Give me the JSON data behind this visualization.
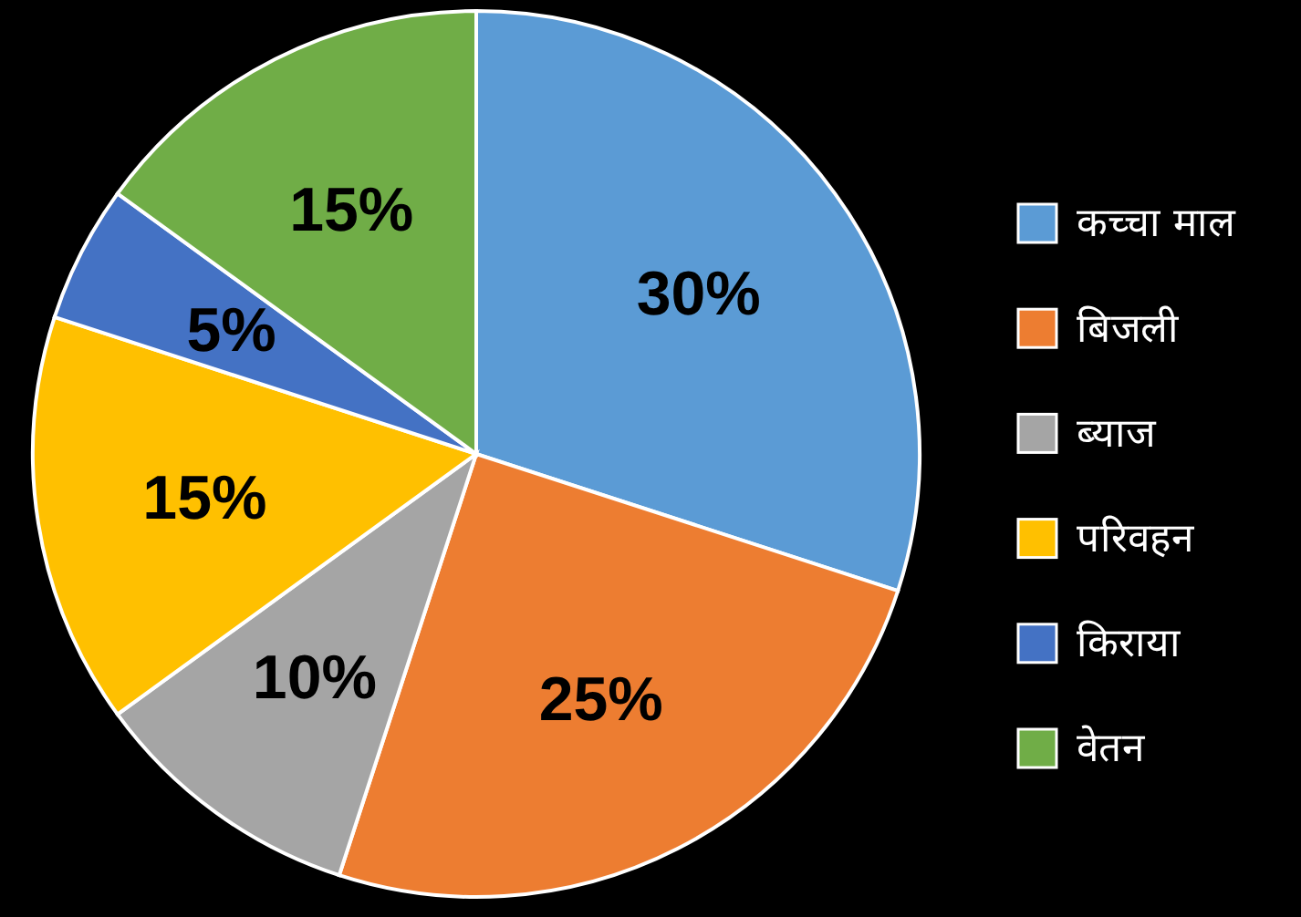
{
  "chart_data": {
    "type": "pie",
    "categories": [
      "कच्चा माल",
      "बिजली",
      "ब्याज",
      "परिवहन",
      "किराया",
      "वेतन"
    ],
    "values": [
      30,
      25,
      10,
      15,
      5,
      15
    ],
    "colors": [
      "#5b9bd5",
      "#ed7d31",
      "#a5a5a5",
      "#ffc000",
      "#4472c4",
      "#70ad47"
    ],
    "value_labels": [
      "30%",
      "25%",
      "10%",
      "15%",
      "5%",
      "15%"
    ],
    "legend": "right"
  }
}
